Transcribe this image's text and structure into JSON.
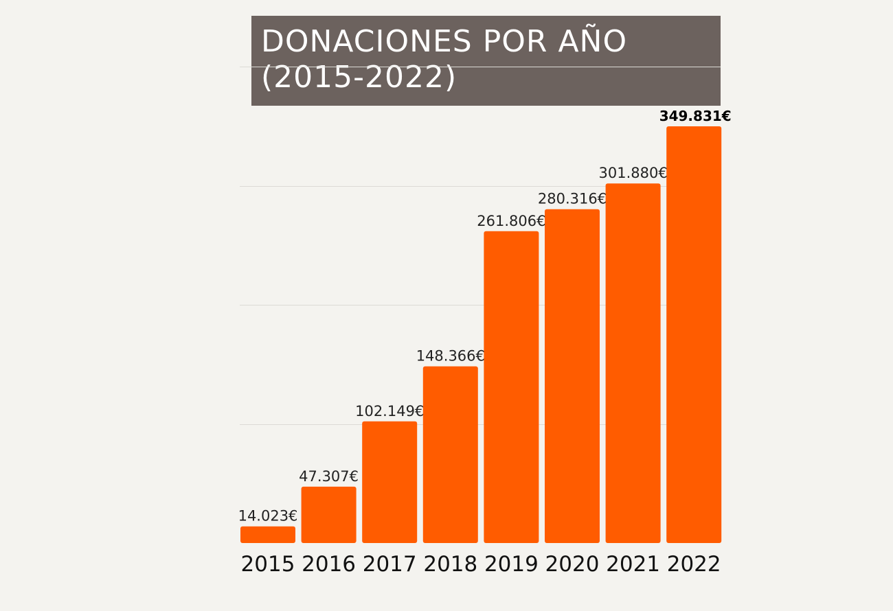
{
  "title_lines": [
    "DONACIONES POR AÑO",
    "(2015-2022)"
  ],
  "colors": {
    "background": "#f4f3ef",
    "title_background": "#6c625e",
    "title_text": "#ffffff",
    "bar": "#ff5c00",
    "gridline": "#dcdad5",
    "label_text": "#222222",
    "highlight_label": "#000000"
  },
  "chart_data": {
    "type": "bar",
    "title": "DONACIONES POR AÑO (2015-2022)",
    "categories": [
      "2015",
      "2016",
      "2017",
      "2018",
      "2019",
      "2020",
      "2021",
      "2022"
    ],
    "values": [
      14023,
      47307,
      102149,
      148366,
      261806,
      280316,
      301880,
      349831
    ],
    "value_labels": [
      "14.023€",
      "47.307€",
      "102.149€",
      "148.366€",
      "261.806€",
      "280.316€",
      "301.880€",
      "349.831€"
    ],
    "highlight_index": 7,
    "xlabel": "",
    "ylabel": "",
    "ylim": [
      0,
      400000
    ],
    "grid": true,
    "gridline_values": [
      100000,
      200000,
      300000,
      400000
    ],
    "legend": "none"
  }
}
